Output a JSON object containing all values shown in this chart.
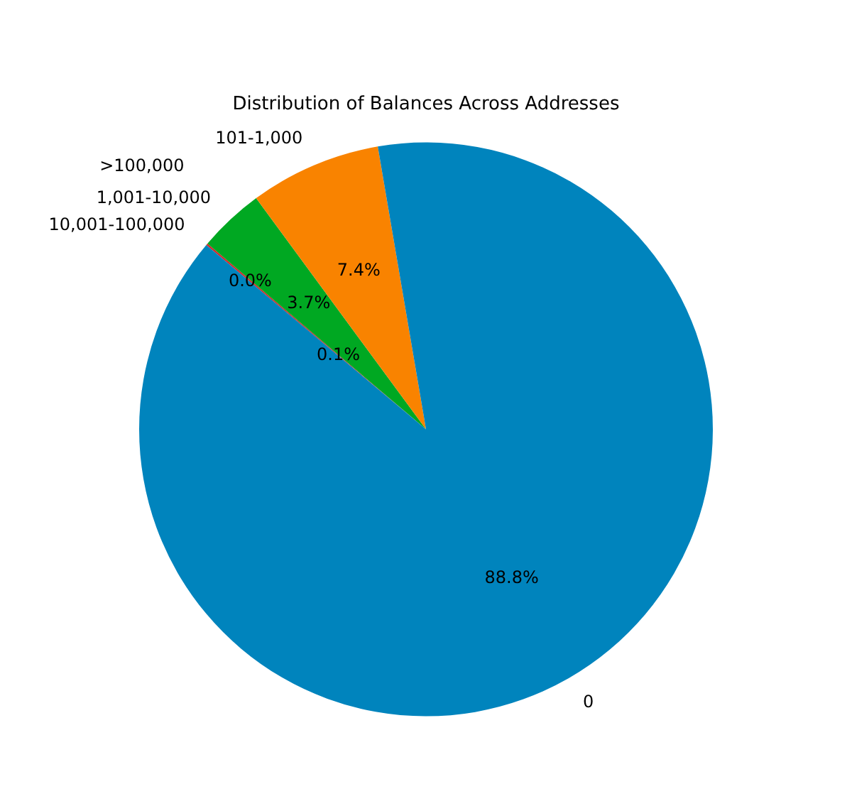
{
  "chart_data": {
    "type": "pie",
    "title": "Distribution of Balances Across Addresses",
    "categories": [
      "0",
      "101-1,000",
      "1,001-10,000",
      "10,001-100,000",
      ">100,000"
    ],
    "values": [
      88.8,
      7.4,
      3.7,
      0.1,
      0.0
    ],
    "colors": [
      "#0084bd",
      "#f98300",
      "#00a822",
      "#d62728",
      "#9467bd"
    ],
    "value_labels": [
      "88.8%",
      "7.4%",
      "3.7%",
      "0.1%",
      "0.0%"
    ],
    "legend": false
  }
}
